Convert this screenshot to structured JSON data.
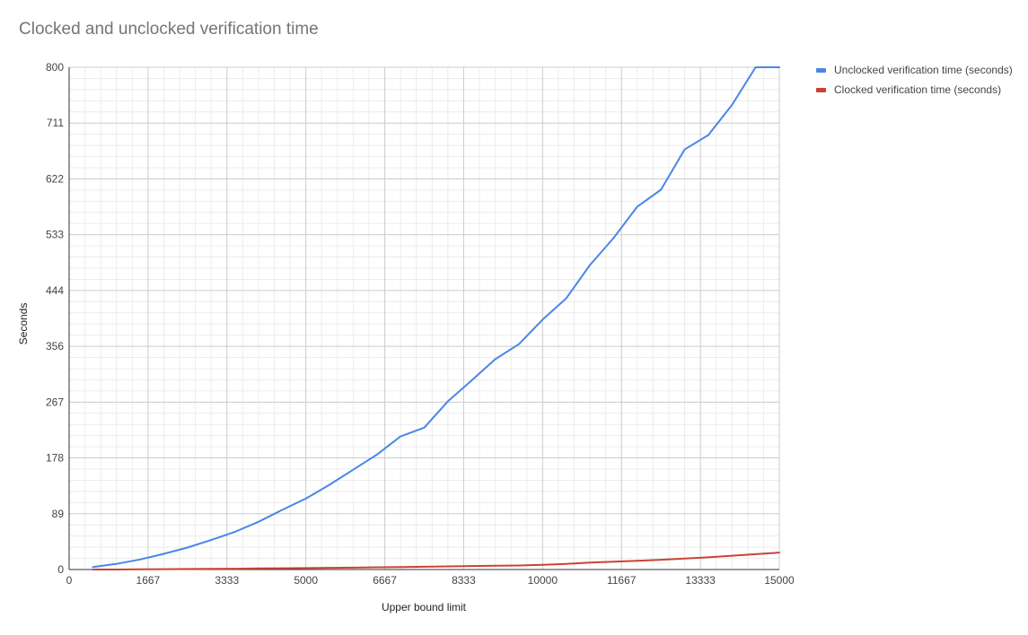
{
  "chart_data": {
    "type": "line",
    "title": "Clocked and unclocked verification time",
    "xlabel": "Upper bound limit",
    "ylabel": "Seconds",
    "xlim": [
      0,
      15000
    ],
    "ylim": [
      0,
      800
    ],
    "x_ticks": [
      "0",
      "1667",
      "3333",
      "5000",
      "6667",
      "8333",
      "10000",
      "11667",
      "13333",
      "15000"
    ],
    "y_ticks": [
      "0",
      "89",
      "178",
      "267",
      "356",
      "444",
      "533",
      "622",
      "711",
      "800"
    ],
    "grid": true,
    "legend_position": "right",
    "x": [
      500,
      1000,
      1500,
      2000,
      2500,
      3000,
      3500,
      4000,
      4500,
      5000,
      5500,
      6000,
      6500,
      7000,
      7500,
      8000,
      8500,
      9000,
      9500,
      10000,
      10500,
      11000,
      11500,
      12000,
      12500,
      13000,
      13500,
      14000,
      14500,
      15000
    ],
    "series": [
      {
        "name": "Unclocked verification time (seconds)",
        "color": "#4a86e8",
        "values": [
          4,
          9,
          16,
          25,
          35,
          47,
          60,
          76,
          95,
          113,
          135,
          159,
          183,
          212,
          226,
          268,
          301,
          335,
          359,
          398,
          432,
          485,
          528,
          578,
          605,
          669,
          692,
          740,
          816,
          819
        ]
      },
      {
        "name": "Clocked verification time (seconds)",
        "color": "#cc4136",
        "values": [
          0,
          0,
          0.3,
          0.5,
          0.8,
          1.0,
          1.3,
          1.7,
          2.0,
          2.3,
          2.7,
          3.0,
          3.5,
          4.0,
          4.5,
          5.0,
          5.5,
          6.0,
          6.5,
          7.5,
          9.0,
          11.0,
          12.5,
          14.0,
          15.5,
          17.5,
          19.5,
          22.0,
          24.5,
          27.0
        ]
      }
    ]
  }
}
